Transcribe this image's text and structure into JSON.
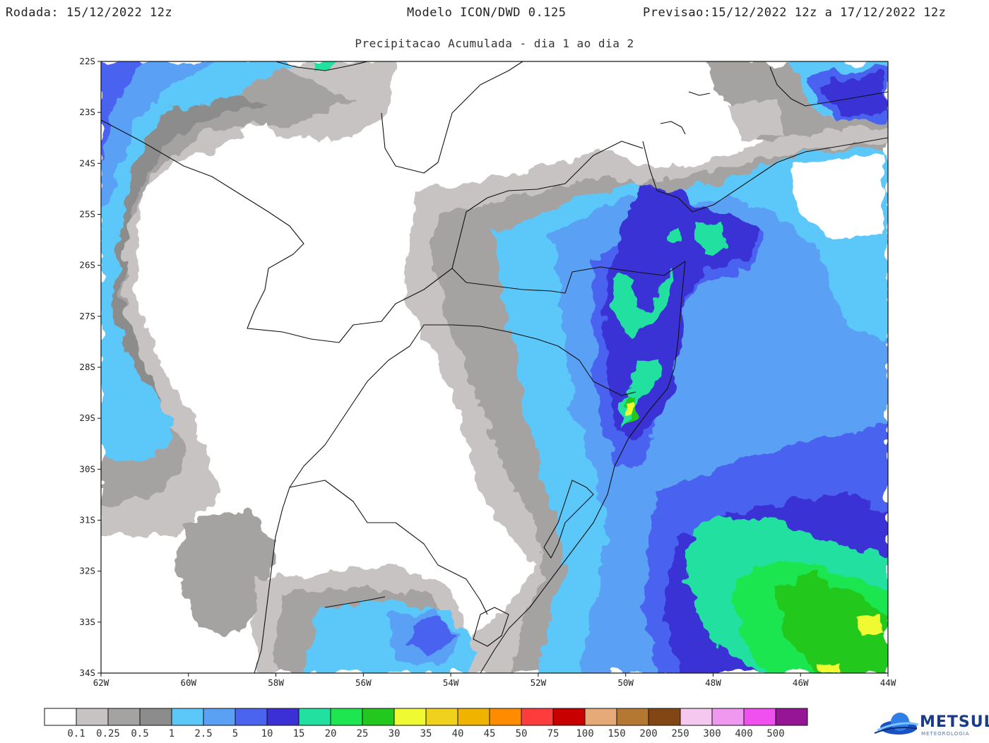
{
  "header": {
    "run": "Rodada: 15/12/2022 12z",
    "model": "Modelo ICON/DWD 0.125",
    "forecast": "Previsao:15/12/2022 12z a 17/12/2022 12z",
    "subtitle": "Precipitacao Acumulada - dia 1 ao dia 2"
  },
  "map": {
    "lon_min": -62,
    "lon_max": -44,
    "lat_min": -34,
    "lat_max": -22,
    "lon_ticks": [
      {
        "value": -62,
        "label": "62W"
      },
      {
        "value": -60,
        "label": "60W"
      },
      {
        "value": -58,
        "label": "58W"
      },
      {
        "value": -56,
        "label": "56W"
      },
      {
        "value": -54,
        "label": "54W"
      },
      {
        "value": -52,
        "label": "52W"
      },
      {
        "value": -50,
        "label": "50W"
      },
      {
        "value": -48,
        "label": "48W"
      },
      {
        "value": -46,
        "label": "46W"
      },
      {
        "value": -44,
        "label": "44W"
      }
    ],
    "lat_ticks": [
      {
        "value": -22,
        "label": "22S"
      },
      {
        "value": -23,
        "label": "23S"
      },
      {
        "value": -24,
        "label": "24S"
      },
      {
        "value": -25,
        "label": "25S"
      },
      {
        "value": -26,
        "label": "26S"
      },
      {
        "value": -27,
        "label": "27S"
      },
      {
        "value": -28,
        "label": "28S"
      },
      {
        "value": -29,
        "label": "29S"
      },
      {
        "value": -30,
        "label": "30S"
      },
      {
        "value": -31,
        "label": "31S"
      },
      {
        "value": -32,
        "label": "32S"
      },
      {
        "value": -33,
        "label": "33S"
      },
      {
        "value": -34,
        "label": "34S"
      }
    ],
    "field_unit_note": "accumulated precipitation (mm) from colorbar"
  },
  "colorbar": {
    "thresholds": [
      "0.1",
      "0.25",
      "0.5",
      "1",
      "2.5",
      "5",
      "10",
      "15",
      "20",
      "25",
      "30",
      "35",
      "40",
      "45",
      "50",
      "75",
      "100",
      "150",
      "200",
      "250",
      "300",
      "400",
      "500"
    ],
    "colors": [
      "#ffffff",
      "#c8c3c3",
      "#a5a2a2",
      "#8c8c8c",
      "#5cc8fa",
      "#5aa0f5",
      "#4a64f0",
      "#3a30d6",
      "#22e0a0",
      "#1ee650",
      "#22c81e",
      "#f0fa32",
      "#f0d21e",
      "#f0b400",
      "#ff8c00",
      "#ff3c3c",
      "#c80000",
      "#e6aa78",
      "#b47832",
      "#824614",
      "#f5c8f0",
      "#f098f0",
      "#f050f0",
      "#961496"
    ]
  },
  "logo": {
    "name": "METSUL",
    "sub": "METEOROLOGIA"
  }
}
